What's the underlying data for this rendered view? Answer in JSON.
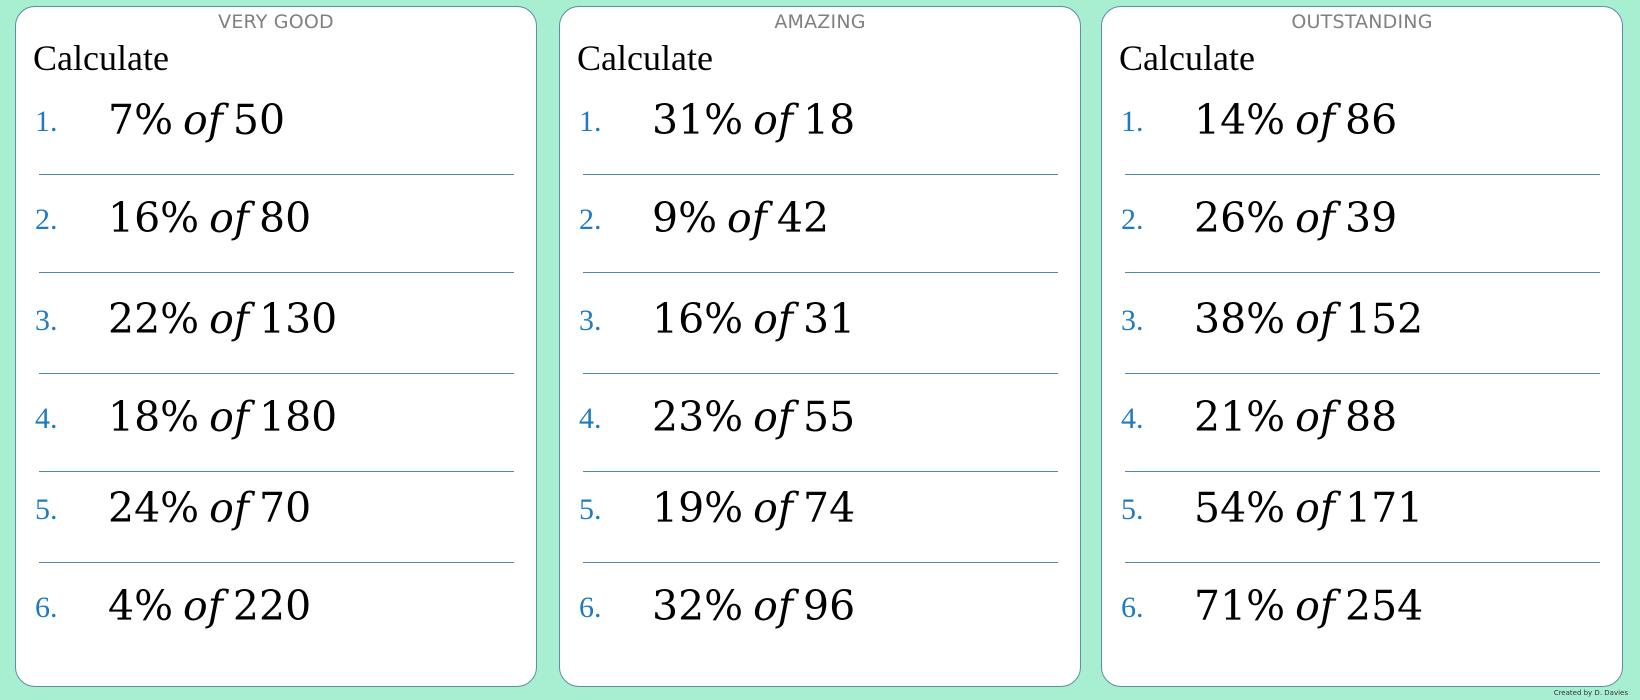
{
  "cards": [
    {
      "level": "VERY GOOD",
      "heading": "Calculate",
      "questions": [
        {
          "num": "1.",
          "percent": "7%",
          "of": "of",
          "value": "50"
        },
        {
          "num": "2.",
          "percent": "16%",
          "of": "of",
          "value": "80"
        },
        {
          "num": "3.",
          "percent": "22%",
          "of": "of",
          "value": "130"
        },
        {
          "num": "4.",
          "percent": "18%",
          "of": "of",
          "value": "180"
        },
        {
          "num": "5.",
          "percent": "24%",
          "of": "of",
          "value": "70"
        },
        {
          "num": "6.",
          "percent": "4%",
          "of": "of",
          "value": "220"
        }
      ]
    },
    {
      "level": "AMAZING",
      "heading": "Calculate",
      "questions": [
        {
          "num": "1.",
          "percent": "31%",
          "of": "of",
          "value": "18"
        },
        {
          "num": "2.",
          "percent": "9%",
          "of": "of",
          "value": "42"
        },
        {
          "num": "3.",
          "percent": "16%",
          "of": "of",
          "value": "31"
        },
        {
          "num": "4.",
          "percent": "23%",
          "of": "of",
          "value": "55"
        },
        {
          "num": "5.",
          "percent": "19%",
          "of": "of",
          "value": "74"
        },
        {
          "num": "6.",
          "percent": "32%",
          "of": "of",
          "value": "96"
        }
      ]
    },
    {
      "level": "OUTSTANDING",
      "heading": "Calculate",
      "questions": [
        {
          "num": "1.",
          "percent": "14%",
          "of": "of",
          "value": "86"
        },
        {
          "num": "2.",
          "percent": "26%",
          "of": "of",
          "value": "39"
        },
        {
          "num": "3.",
          "percent": "38%",
          "of": "of",
          "value": "152"
        },
        {
          "num": "4.",
          "percent": "21%",
          "of": "of",
          "value": "88"
        },
        {
          "num": "5.",
          "percent": "54%",
          "of": "of",
          "value": "171"
        },
        {
          "num": "6.",
          "percent": "71%",
          "of": "of",
          "value": "254"
        }
      ]
    }
  ],
  "credit": "Created by D. Davies",
  "colors": {
    "background": "#a8eed0",
    "card_border": "#5a8fa5",
    "number_blue": "#1f7abf",
    "rule_blue": "#4f89ad",
    "level_gray": "#808080"
  }
}
